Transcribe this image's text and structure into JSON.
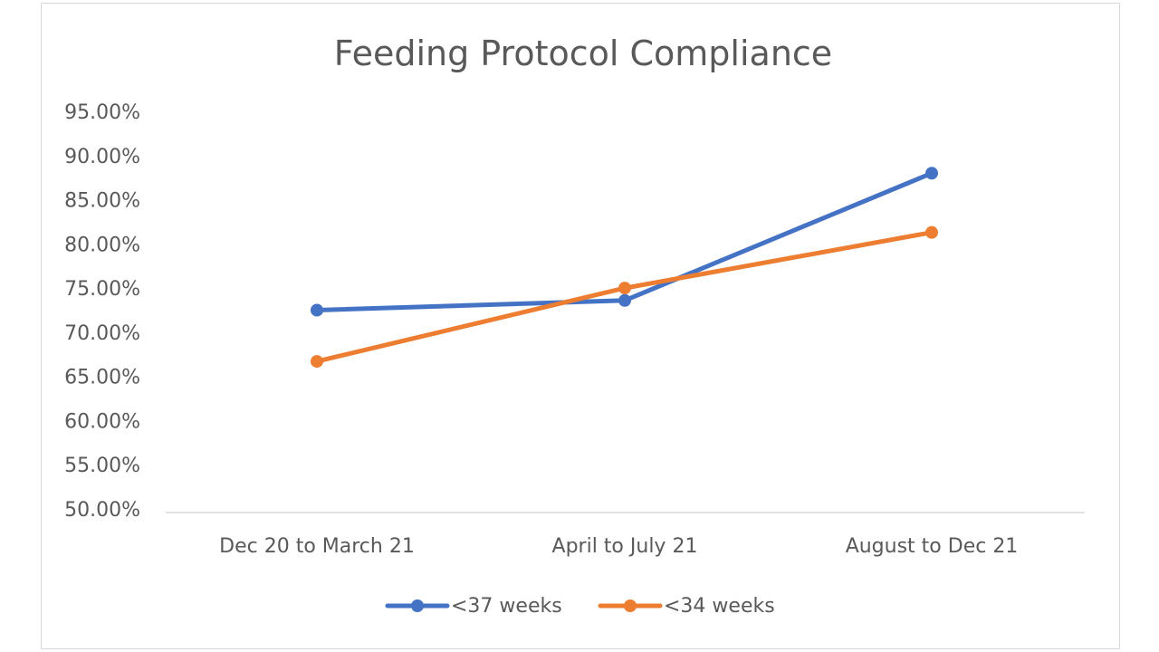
{
  "chart_data": {
    "type": "line",
    "title": "Feeding Protocol Compliance",
    "xlabel": "",
    "ylabel": "",
    "categories": [
      "Dec 20 to March 21",
      "April to July 21",
      "August to Dec 21"
    ],
    "y_ticks": [
      "50.00%",
      "55.00%",
      "60.00%",
      "65.00%",
      "70.00%",
      "75.00%",
      "80.00%",
      "85.00%",
      "90.00%",
      "95.00%"
    ],
    "ylim": [
      50,
      95
    ],
    "grid": false,
    "legend_position": "bottom",
    "series": [
      {
        "name": "<37 weeks",
        "color": "#4472c4",
        "values": [
          72.5,
          73.6,
          88.0
        ]
      },
      {
        "name": "<34 weeks",
        "color": "#ed7d31",
        "values": [
          66.7,
          75.0,
          81.3
        ]
      }
    ]
  }
}
